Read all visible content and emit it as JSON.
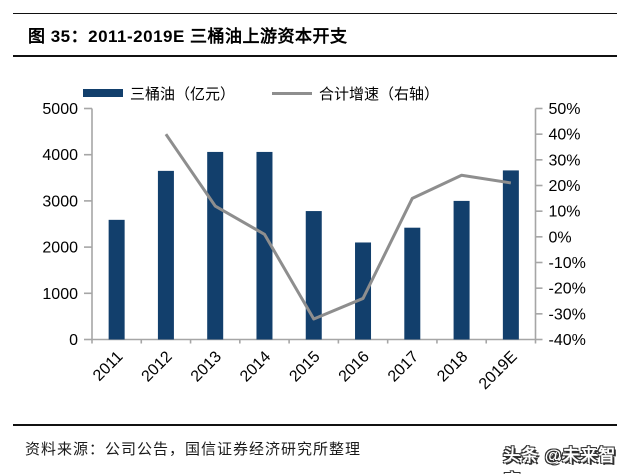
{
  "header": {
    "title": "图 35：2011-2019E 三桶油上游资本开支"
  },
  "legend": {
    "bar_label": "三桶油（亿元）",
    "line_label": "合计增速（右轴）"
  },
  "chart_data": {
    "type": "bar+line combo",
    "categories": [
      "2011",
      "2012",
      "2013",
      "2014",
      "2015",
      "2016",
      "2017",
      "2018",
      "2019E"
    ],
    "series": [
      {
        "name": "三桶油（亿元）",
        "type": "bar",
        "axis": "left",
        "values": [
          2590,
          3650,
          4060,
          4060,
          2780,
          2100,
          2420,
          3000,
          3660
        ]
      },
      {
        "name": "合计增速（右轴）",
        "type": "line",
        "axis": "right",
        "values": [
          null,
          40,
          12,
          1,
          -32,
          -24,
          15,
          24,
          21
        ]
      }
    ],
    "left_axis": {
      "min": 0,
      "max": 5000,
      "step": 1000,
      "labels": [
        "0",
        "1000",
        "2000",
        "3000",
        "4000",
        "5000"
      ]
    },
    "right_axis": {
      "min": -40,
      "max": 50,
      "step": 10,
      "unit": "%",
      "labels": [
        "-40%",
        "-30%",
        "-20%",
        "-10%",
        "0%",
        "10%",
        "20%",
        "30%",
        "40%",
        "50%"
      ]
    },
    "grid": false,
    "legend_position": "top"
  },
  "footer": {
    "source": "资料来源：公司公告，国信证券经济研究所整理",
    "watermark": "头条 @未来智库"
  },
  "colors": {
    "bar": "#123f6c",
    "line": "#8e8e8e",
    "axis": "#a6a6a6",
    "text": "#000000"
  }
}
